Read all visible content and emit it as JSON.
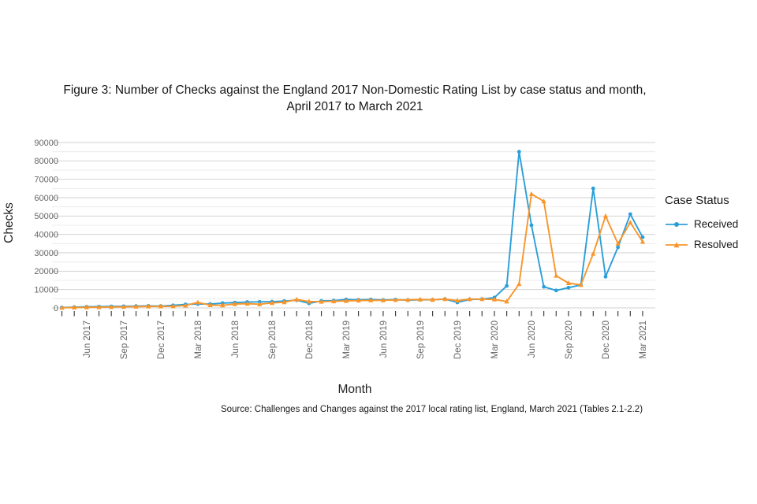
{
  "figure": {
    "title_line1": "Figure 3: Number of Checks against the England 2017 Non-Domestic Rating List by case status and month,",
    "title_line2": "April 2017 to March 2021",
    "source": "Source: Challenges and Changes against the 2017 local rating list, England, March 2021 (Tables 2.1-2.2)"
  },
  "legend": {
    "title": "Case Status",
    "items": [
      {
        "label": "Received",
        "color": "#2B9FD9",
        "marker": "circle"
      },
      {
        "label": "Resolved",
        "color": "#F8962C",
        "marker": "triangle"
      }
    ]
  },
  "axes": {
    "y_title": "Checks",
    "x_title": "Month"
  },
  "colors": {
    "received": "#2B9FD9",
    "resolved": "#F8962C",
    "grid_major": "#d2d2d2",
    "grid_minor": "#ececec",
    "tick": "#404040",
    "axis_text": "#666666"
  },
  "chart_data": {
    "type": "line",
    "title": "Figure 3: Number of Checks against the England 2017 Non-Domestic Rating List by case status and month, April 2017 to March 2021",
    "xlabel": "Month",
    "ylabel": "Checks",
    "ylim": [
      0,
      90000
    ],
    "y_tick_step": 10000,
    "y_minor_step": 5000,
    "grid": "horizontal only, minor lines every 5000",
    "legend_position": "right",
    "legend_title": "Case Status",
    "x": [
      "Apr 2017",
      "May 2017",
      "Jun 2017",
      "Jul 2017",
      "Aug 2017",
      "Sep 2017",
      "Oct 2017",
      "Nov 2017",
      "Dec 2017",
      "Jan 2018",
      "Feb 2018",
      "Mar 2018",
      "Apr 2018",
      "May 2018",
      "Jun 2018",
      "Jul 2018",
      "Aug 2018",
      "Sep 2018",
      "Oct 2018",
      "Nov 2018",
      "Dec 2018",
      "Jan 2019",
      "Feb 2019",
      "Mar 2019",
      "Apr 2019",
      "May 2019",
      "Jun 2019",
      "Jul 2019",
      "Aug 2019",
      "Sep 2019",
      "Oct 2019",
      "Nov 2019",
      "Dec 2019",
      "Jan 2020",
      "Feb 2020",
      "Mar 2020",
      "Apr 2020",
      "May 2020",
      "Jun 2020",
      "Jul 2020",
      "Aug 2020",
      "Sep 2020",
      "Oct 2020",
      "Nov 2020",
      "Dec 2020",
      "Jan 2021",
      "Feb 2021",
      "Mar 2021"
    ],
    "x_tick_labels_shown": [
      "Jun 2017",
      "Sep 2017",
      "Dec 2017",
      "Mar 2018",
      "Jun 2018",
      "Sep 2018",
      "Dec 2018",
      "Mar 2019",
      "Jun 2019",
      "Sep 2019",
      "Dec 2019",
      "Mar 2020",
      "Jun 2020",
      "Sep 2020",
      "Dec 2020",
      "Mar 2021"
    ],
    "series": [
      {
        "name": "Received",
        "color": "#2B9FD9",
        "marker": "circle",
        "values": [
          200,
          400,
          600,
          700,
          800,
          900,
          1000,
          1100,
          1000,
          1400,
          1900,
          2100,
          2100,
          2600,
          2900,
          3200,
          3300,
          3400,
          3700,
          4200,
          2500,
          3800,
          4000,
          4600,
          4400,
          4600,
          4300,
          4500,
          4200,
          4400,
          4400,
          4800,
          3000,
          4600,
          4800,
          5600,
          12000,
          85000,
          45000,
          11500,
          9500,
          11000,
          12500,
          65000,
          17000,
          33000,
          51000,
          38500
        ]
      },
      {
        "name": "Resolved",
        "color": "#F8962C",
        "marker": "triangle",
        "values": [
          100,
          200,
          300,
          400,
          500,
          600,
          700,
          800,
          800,
          900,
          1300,
          3000,
          1500,
          1400,
          2100,
          2300,
          2000,
          2700,
          3100,
          4600,
          3500,
          3400,
          3600,
          3800,
          4000,
          4100,
          4100,
          4300,
          4400,
          4600,
          4400,
          4800,
          4000,
          4800,
          4800,
          4600,
          3500,
          13000,
          62000,
          58000,
          17500,
          13500,
          12500,
          29500,
          50000,
          35000,
          46500,
          36000
        ]
      }
    ]
  }
}
